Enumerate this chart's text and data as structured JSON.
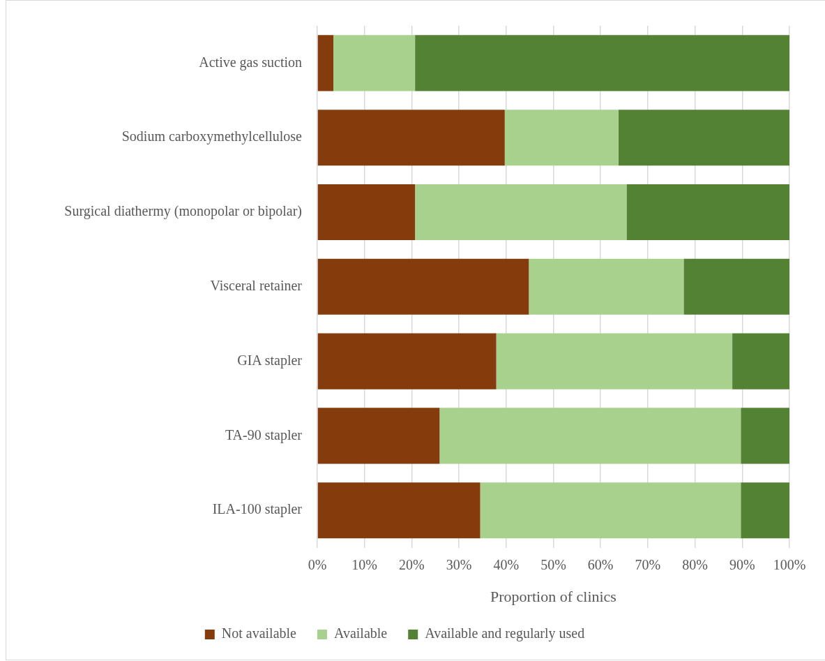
{
  "chart_data": {
    "type": "bar",
    "orientation": "horizontal",
    "stacked": true,
    "xlabel": "Proportion of clinics",
    "categories": [
      "Active gas suction",
      "Sodium carboxymethylcellulose",
      "Surgical diathermy (monopolar or bipolar)",
      "Visceral retainer",
      "GIA stapler",
      "TA-90 stapler",
      "ILA-100 stapler"
    ],
    "series": [
      {
        "name": "Not available",
        "color": "#843c0c",
        "values": [
          3.4,
          39.7,
          20.7,
          44.8,
          37.9,
          25.9,
          34.5
        ]
      },
      {
        "name": "Available",
        "color": "#a9d18e",
        "values": [
          17.3,
          24.1,
          44.8,
          32.8,
          50.0,
          63.8,
          55.2
        ]
      },
      {
        "name": "Available and regularly used",
        "color": "#548235",
        "values": [
          79.3,
          36.2,
          34.5,
          22.4,
          12.1,
          10.3,
          10.3
        ]
      }
    ],
    "xlim": [
      0,
      100
    ],
    "xticks": [
      {
        "value": 0,
        "label": "0%"
      },
      {
        "value": 10,
        "label": "10%"
      },
      {
        "value": 20,
        "label": "20%"
      },
      {
        "value": 30,
        "label": "30%"
      },
      {
        "value": 40,
        "label": "40%"
      },
      {
        "value": 50,
        "label": "50%"
      },
      {
        "value": 60,
        "label": "60%"
      },
      {
        "value": 70,
        "label": "70%"
      },
      {
        "value": 80,
        "label": "80%"
      },
      {
        "value": 90,
        "label": "90%"
      },
      {
        "value": 100,
        "label": "100%"
      }
    ],
    "grid": "x",
    "legend": "bottom"
  }
}
